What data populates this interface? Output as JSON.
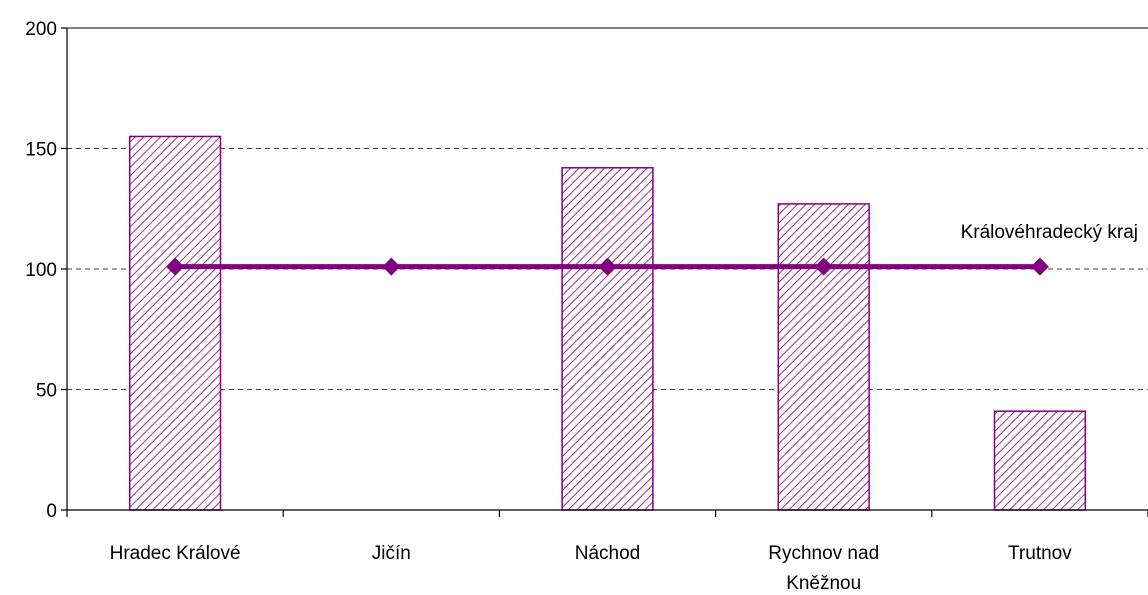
{
  "chart_data": {
    "type": "bar",
    "categories": [
      "Hradec Králové",
      "Jičín",
      "Náchod",
      "Rychnov nad Kněžnou",
      "Trutnov"
    ],
    "category_lines": [
      [
        "Hradec Králové"
      ],
      [
        "Jičín"
      ],
      [
        "Náchod"
      ],
      [
        "Rychnov nad",
        "Kněžnou"
      ],
      [
        "Trutnov"
      ]
    ],
    "series": [
      {
        "type": "bar",
        "values": [
          155,
          0,
          142,
          127,
          41
        ]
      },
      {
        "type": "line",
        "name": "Královéhradecký kraj",
        "values": [
          101,
          101,
          101,
          101,
          101
        ]
      }
    ],
    "ylim": [
      0,
      200
    ],
    "yticks": [
      0,
      50,
      100,
      150,
      200
    ],
    "grid": "dashed horizontal",
    "colors": {
      "bar_stroke": "#800080",
      "bar_hatch": "#800060",
      "line": "#800080",
      "axis": "#000000",
      "grid": "#000000"
    },
    "title": "",
    "xlabel": "",
    "ylabel": ""
  }
}
